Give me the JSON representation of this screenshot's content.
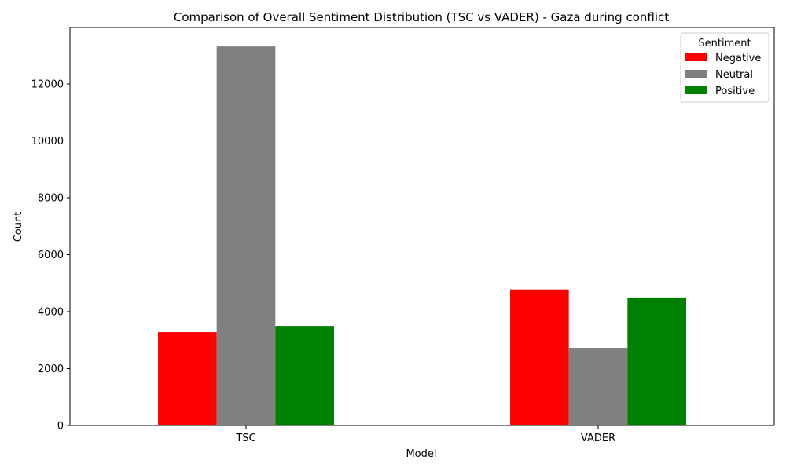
{
  "chart_data": {
    "type": "bar",
    "title": "Comparison of Overall Sentiment Distribution (TSC vs VADER) - Gaza during conflict",
    "xlabel": "Model",
    "ylabel": "Count",
    "categories": [
      "TSC",
      "VADER"
    ],
    "series": [
      {
        "name": "Negative",
        "color": "#ff0000",
        "values": [
          3280,
          4780
        ]
      },
      {
        "name": "Neutral",
        "color": "#808080",
        "values": [
          13320,
          2730
        ]
      },
      {
        "name": "Positive",
        "color": "#008000",
        "values": [
          3500,
          4500
        ]
      }
    ],
    "ylim": [
      0,
      13986
    ],
    "yticks": [
      0,
      2000,
      4000,
      6000,
      8000,
      10000,
      12000
    ],
    "legend": {
      "title": "Sentiment",
      "placement": "top-right"
    },
    "grid": false
  }
}
